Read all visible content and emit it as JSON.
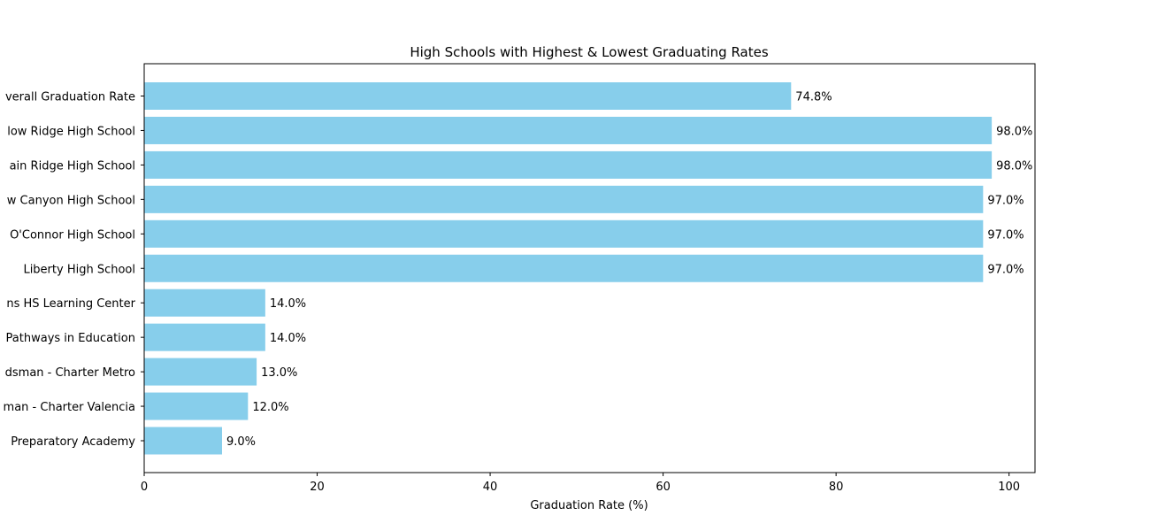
{
  "chart_data": {
    "type": "bar",
    "orientation": "horizontal",
    "title": "High Schools with Highest & Lowest Graduating Rates",
    "xlabel": "Graduation Rate (%)",
    "ylabel": "",
    "xlim": [
      0,
      103
    ],
    "xticks": [
      0,
      20,
      40,
      60,
      80,
      100
    ],
    "categories": [
      "verall Graduation Rate",
      "low Ridge High School",
      "ain Ridge High School",
      "w Canyon High School",
      "O'Connor High School",
      "Liberty High School",
      "ns HS Learning Center",
      "Pathways in Education",
      "dsman - Charter Metro",
      "man - Charter Valencia",
      "Preparatory Academy"
    ],
    "values": [
      74.8,
      98.0,
      98.0,
      97.0,
      97.0,
      97.0,
      14.0,
      14.0,
      13.0,
      12.0,
      9.0
    ],
    "value_labels": [
      "74.8%",
      "98.0%",
      "98.0%",
      "97.0%",
      "97.0%",
      "97.0%",
      "14.0%",
      "14.0%",
      "13.0%",
      "12.0%",
      "9.0%"
    ],
    "bar_color": "#87CEEB",
    "grid": false
  }
}
